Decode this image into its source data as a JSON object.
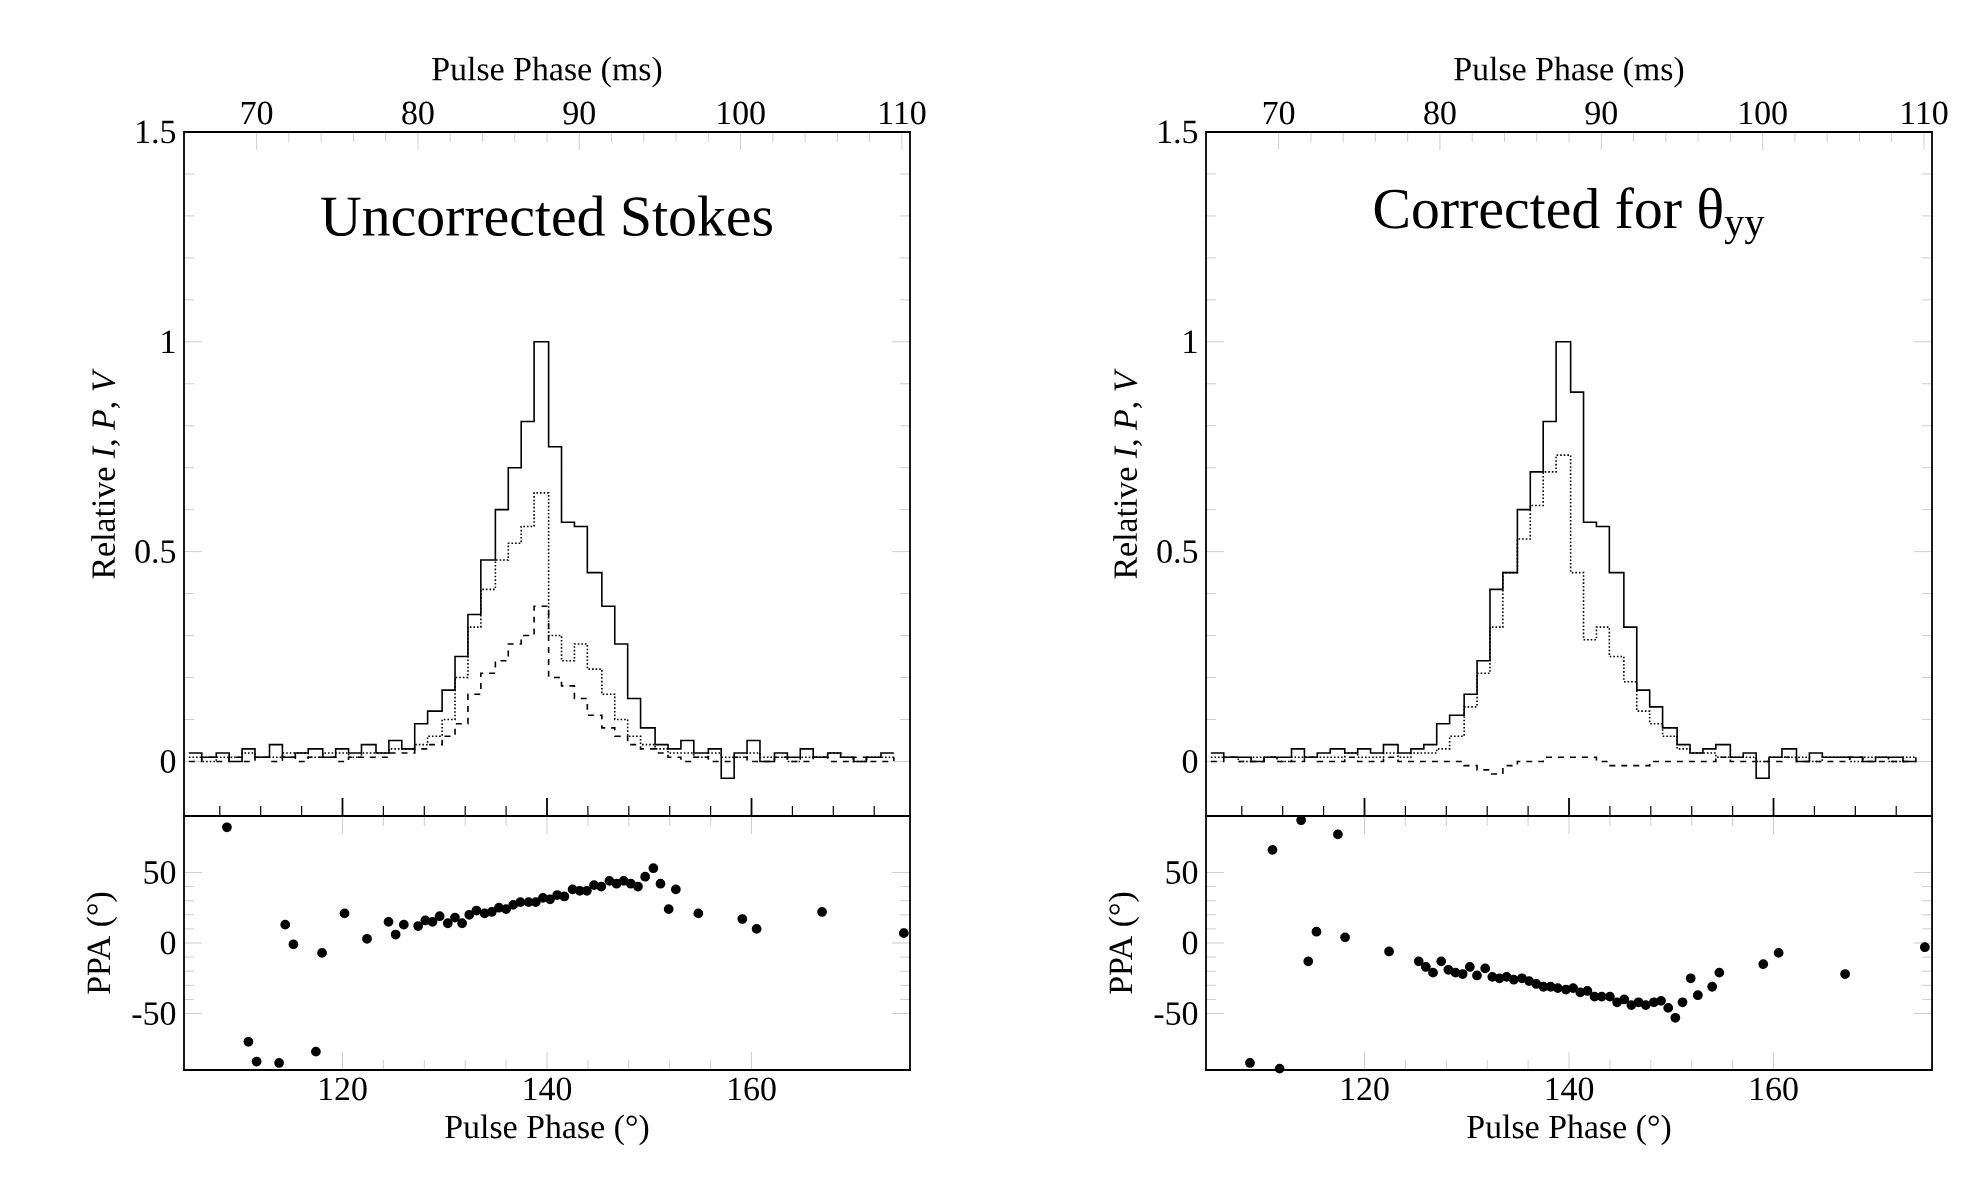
{
  "chart_data": [
    {
      "type": "step",
      "title": "Uncorrected Stokes",
      "ylabel": "Relative *I*, *P*, *V*",
      "xlabel": "Pulse Phase (ms)",
      "xlim": [
        65.5,
        110.5
      ],
      "xticks": [
        70,
        80,
        90,
        100,
        110
      ],
      "ylim": [
        -0.13,
        1.5
      ],
      "yticks": [
        0,
        0.5,
        1,
        1.5
      ],
      "x": [
        65.8,
        66.6,
        67.5,
        68.3,
        69.1,
        69.9,
        70.8,
        71.6,
        72.4,
        73.2,
        74.1,
        74.9,
        75.7,
        76.5,
        77.4,
        78.2,
        79.0,
        79.8,
        80.6,
        81.5,
        82.3,
        83.1,
        83.9,
        84.8,
        85.6,
        86.4,
        87.2,
        88.1,
        88.9,
        89.7,
        90.5,
        91.4,
        92.2,
        93.0,
        93.8,
        94.7,
        95.5,
        96.3,
        97.1,
        98.0,
        98.8,
        99.6,
        100.4,
        101.2,
        102.1,
        102.9,
        103.7,
        104.5,
        105.4,
        106.2,
        107.0,
        107.8,
        108.7,
        109.5
      ],
      "series": [
        {
          "color": "#000000",
          "line_style": "solid",
          "values": [
            0.02,
            0.01,
            0.02,
            0.0,
            0.03,
            0.01,
            0.04,
            0.01,
            0.02,
            0.03,
            0.01,
            0.03,
            0.02,
            0.04,
            0.02,
            0.05,
            0.03,
            0.09,
            0.12,
            0.17,
            0.25,
            0.35,
            0.48,
            0.6,
            0.7,
            0.81,
            1.0,
            0.75,
            0.57,
            0.56,
            0.45,
            0.37,
            0.28,
            0.15,
            0.08,
            0.04,
            0.03,
            0.05,
            0.02,
            0.03,
            -0.04,
            0.02,
            0.05,
            0.0,
            0.02,
            0.01,
            0.03,
            0.01,
            0.02,
            0.01,
            0.0,
            0.01,
            0.02,
            0.02
          ]
        },
        {
          "color": "#000000",
          "line_style": "dotted",
          "values": [
            0.01,
            0.0,
            0.01,
            0.01,
            0.02,
            0.01,
            0.01,
            0.02,
            0.02,
            0.01,
            0.02,
            0.02,
            0.01,
            0.02,
            0.02,
            0.03,
            0.03,
            0.04,
            0.06,
            0.1,
            0.2,
            0.32,
            0.41,
            0.48,
            0.52,
            0.56,
            0.64,
            0.3,
            0.24,
            0.28,
            0.22,
            0.16,
            0.1,
            0.06,
            0.04,
            0.03,
            0.02,
            0.02,
            0.01,
            0.02,
            0.01,
            0.01,
            0.02,
            0.01,
            0.01,
            0.0,
            0.01,
            0.01,
            0.02,
            0.01,
            0.0,
            0.01,
            0.01,
            0.01
          ]
        },
        {
          "color": "#000000",
          "line_style": "dashed",
          "values": [
            0.0,
            0.01,
            0.0,
            0.01,
            0.0,
            0.01,
            0.0,
            0.01,
            0.0,
            0.01,
            0.01,
            0.0,
            0.01,
            0.01,
            0.01,
            0.02,
            0.02,
            0.03,
            0.04,
            0.06,
            0.09,
            0.16,
            0.21,
            0.24,
            0.28,
            0.3,
            0.37,
            0.2,
            0.18,
            0.15,
            0.11,
            0.08,
            0.06,
            0.04,
            0.03,
            0.02,
            0.01,
            0.0,
            0.01,
            0.0,
            0.0,
            0.01,
            0.0,
            0.0,
            0.01,
            0.0,
            0.0,
            0.01,
            0.0,
            0.0,
            0.01,
            0.0,
            0.0,
            0.01
          ]
        }
      ]
    },
    {
      "type": "step",
      "title": "Corrected for θ$_{yy}$",
      "ylabel": "Relative *I*, *P*, *V*",
      "xlabel": "Pulse Phase (ms)",
      "xlim": [
        65.5,
        110.5
      ],
      "xticks": [
        70,
        80,
        90,
        100,
        110
      ],
      "ylim": [
        -0.13,
        1.5
      ],
      "yticks": [
        0,
        0.5,
        1,
        1.5
      ],
      "x": [
        65.8,
        66.6,
        67.5,
        68.3,
        69.1,
        69.9,
        70.8,
        71.6,
        72.4,
        73.2,
        74.1,
        74.9,
        75.7,
        76.5,
        77.4,
        78.2,
        79.0,
        79.8,
        80.6,
        81.5,
        82.3,
        83.1,
        83.9,
        84.8,
        85.6,
        86.4,
        87.2,
        88.1,
        88.9,
        89.7,
        90.5,
        91.4,
        92.2,
        93.0,
        93.8,
        94.7,
        95.5,
        96.3,
        97.1,
        98.0,
        98.8,
        99.6,
        100.4,
        101.2,
        102.1,
        102.9,
        103.7,
        104.5,
        105.4,
        106.2,
        107.0,
        107.8,
        108.7,
        109.5
      ],
      "series": [
        {
          "color": "#000000",
          "line_style": "solid",
          "values": [
            0.02,
            0.01,
            0.01,
            0.0,
            0.01,
            0.01,
            0.03,
            0.01,
            0.02,
            0.03,
            0.02,
            0.03,
            0.02,
            0.04,
            0.02,
            0.03,
            0.04,
            0.09,
            0.11,
            0.16,
            0.24,
            0.41,
            0.45,
            0.6,
            0.69,
            0.81,
            1.0,
            0.88,
            0.57,
            0.56,
            0.45,
            0.32,
            0.17,
            0.13,
            0.08,
            0.04,
            0.02,
            0.03,
            0.04,
            0.01,
            0.02,
            -0.04,
            0.01,
            0.03,
            0.0,
            0.02,
            0.01,
            0.01,
            0.01,
            0.0,
            0.01,
            0.01,
            0.0,
            0.01
          ]
        },
        {
          "color": "#000000",
          "line_style": "dotted",
          "values": [
            0.01,
            0.01,
            0.0,
            0.01,
            0.01,
            0.0,
            0.01,
            0.01,
            0.01,
            0.01,
            0.02,
            0.01,
            0.01,
            0.02,
            0.01,
            0.02,
            0.02,
            0.03,
            0.06,
            0.13,
            0.21,
            0.32,
            0.45,
            0.53,
            0.61,
            0.69,
            0.73,
            0.45,
            0.29,
            0.32,
            0.25,
            0.19,
            0.12,
            0.09,
            0.06,
            0.03,
            0.02,
            0.02,
            0.01,
            0.01,
            0.01,
            0.0,
            0.01,
            0.01,
            0.01,
            0.0,
            0.01,
            0.01,
            0.0,
            0.01,
            0.01,
            0.0,
            0.01,
            0.01
          ]
        },
        {
          "color": "#000000",
          "line_style": "dashed",
          "values": [
            0.0,
            0.01,
            0.0,
            0.0,
            0.01,
            0.0,
            0.0,
            0.01,
            0.0,
            0.0,
            0.01,
            0.0,
            0.0,
            0.01,
            0.0,
            0.0,
            0.0,
            0.0,
            0.0,
            -0.01,
            -0.02,
            -0.03,
            -0.01,
            0.0,
            0.0,
            0.01,
            0.01,
            0.01,
            0.01,
            0.0,
            -0.01,
            -0.01,
            -0.01,
            0.0,
            0.0,
            0.0,
            0.0,
            0.0,
            0.01,
            0.0,
            0.0,
            0.0,
            0.0,
            0.01,
            0.0,
            0.0,
            0.0,
            0.0,
            0.01,
            0.0,
            0.0,
            0.0,
            0.0,
            0.0
          ]
        }
      ]
    },
    {
      "type": "scatter",
      "xlabel": "Pulse Phase (°)",
      "ylabel": "PPA (°)",
      "xlim": [
        104.5,
        175.5
      ],
      "xticks": [
        120,
        140,
        160
      ],
      "ylim": [
        -90,
        90
      ],
      "yticks": [
        -50,
        0,
        50
      ],
      "marker": "circle",
      "color": "#000000",
      "x": [
        108.7,
        110.8,
        111.6,
        113.8,
        114.4,
        115.2,
        117.4,
        118.0,
        120.2,
        122.4,
        124.5,
        125.2,
        126.0,
        127.4,
        128.1,
        128.8,
        129.5,
        130.3,
        131.0,
        131.7,
        132.4,
        133.1,
        133.9,
        134.6,
        135.3,
        136.0,
        136.7,
        137.4,
        138.2,
        138.9,
        139.6,
        140.3,
        141.0,
        141.7,
        142.5,
        143.2,
        143.9,
        144.6,
        145.3,
        146.1,
        146.8,
        147.5,
        148.2,
        148.9,
        149.6,
        150.4,
        151.1,
        151.9,
        152.6,
        154.8,
        159.1,
        160.5,
        166.9,
        174.9
      ],
      "values": [
        82,
        -70,
        -84,
        -85,
        13,
        -1,
        -77,
        -7,
        21,
        3,
        15,
        6,
        13,
        12,
        16,
        15,
        19,
        14,
        18,
        14,
        20,
        23,
        21,
        22,
        25,
        24,
        27,
        29,
        29,
        29,
        32,
        31,
        34,
        33,
        38,
        37,
        37,
        41,
        40,
        44,
        42,
        44,
        42,
        40,
        47,
        53,
        42,
        24,
        38,
        21,
        17,
        10,
        22,
        7
      ]
    },
    {
      "type": "scatter",
      "xlabel": "Pulse Phase (°)",
      "ylabel": "PPA (°)",
      "xlim": [
        104.5,
        175.5
      ],
      "xticks": [
        120,
        140,
        160
      ],
      "ylim": [
        -90,
        90
      ],
      "yticks": [
        -50,
        0,
        50
      ],
      "marker": "circle",
      "color": "#000000",
      "x": [
        108.8,
        111.0,
        111.7,
        113.8,
        114.5,
        115.3,
        117.4,
        118.1,
        122.4,
        125.3,
        126.0,
        126.7,
        127.5,
        128.2,
        128.9,
        129.6,
        130.3,
        131.0,
        131.8,
        132.5,
        133.2,
        133.9,
        134.6,
        135.4,
        136.1,
        136.8,
        137.5,
        138.2,
        138.9,
        139.7,
        140.4,
        141.1,
        141.8,
        142.5,
        143.2,
        144.0,
        144.7,
        145.4,
        146.1,
        146.8,
        147.5,
        148.3,
        149.0,
        149.7,
        150.4,
        151.1,
        151.9,
        152.6,
        154.0,
        154.7,
        159.0,
        160.5,
        167.0,
        174.8
      ],
      "values": [
        -85,
        66,
        -89,
        87,
        -13,
        8,
        77,
        4,
        -6,
        -13,
        -17,
        -21,
        -13,
        -19,
        -21,
        -22,
        -17,
        -23,
        -18,
        -24,
        -25,
        -24,
        -26,
        -25,
        -27,
        -29,
        -31,
        -31,
        -32,
        -33,
        -32,
        -35,
        -34,
        -38,
        -38,
        -38,
        -42,
        -40,
        -44,
        -42,
        -44,
        -42,
        -41,
        -46,
        -53,
        -42,
        -25,
        -37,
        -31,
        -21,
        -15,
        -7,
        -22,
        -3
      ]
    }
  ]
}
